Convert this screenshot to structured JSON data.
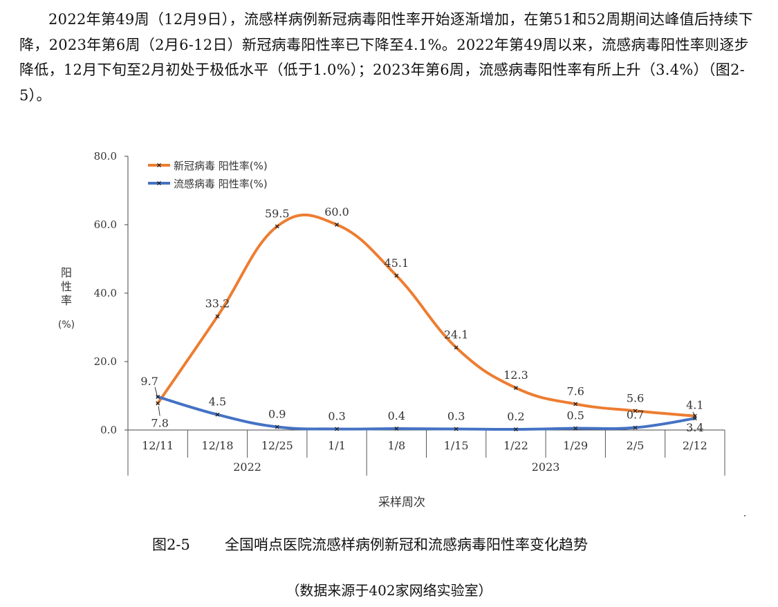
{
  "paragraph": "2022年第49周（12月9日），流感样病例新冠病毒阳性率开始逐渐增加，在第51和52周期间达峰值后持续下降，2023年第6周（2月6-12日）新冠病毒阳性率已下降至4.1%。2022年第49周以来，流感病毒阳性率则逐步降低，12月下旬至2月初处于极低水平（低于1.0%）；2023年第6周，流感病毒阳性率有所上升（3.4%）（图2-5）。",
  "caption": {
    "label": "图2-5",
    "title": "全国哨点医院流感样病例新冠和流感病毒阳性率变化趋势"
  },
  "source_note": "（数据来源于402家网络实验室）",
  "chart_data": {
    "type": "line",
    "categories": [
      "12/11",
      "12/18",
      "12/25",
      "1/1",
      "1/8",
      "1/15",
      "1/22",
      "1/29",
      "2/5",
      "2/12"
    ],
    "year_groups": [
      {
        "label": "2022",
        "from": 0,
        "to": 3
      },
      {
        "label": "2023",
        "from": 4,
        "to": 9
      }
    ],
    "series": [
      {
        "name": "新冠病毒 阳性率(%)",
        "color": "#ED7D31",
        "values": [
          7.8,
          33.2,
          59.5,
          60.0,
          45.1,
          24.1,
          12.3,
          7.6,
          5.6,
          4.1
        ]
      },
      {
        "name": "流感病毒 阳性率(%)",
        "color": "#4472C4",
        "values": [
          9.7,
          4.5,
          0.9,
          0.3,
          0.4,
          0.3,
          0.2,
          0.5,
          0.7,
          3.4
        ]
      }
    ],
    "xlabel": "采样周次",
    "ylabel": "阳性率(%)",
    "ylim": [
      0,
      80
    ],
    "yticks": [
      "0.0",
      "20.0",
      "40.0",
      "60.0",
      "80.0"
    ],
    "smooth": true,
    "legend": "top-left"
  }
}
